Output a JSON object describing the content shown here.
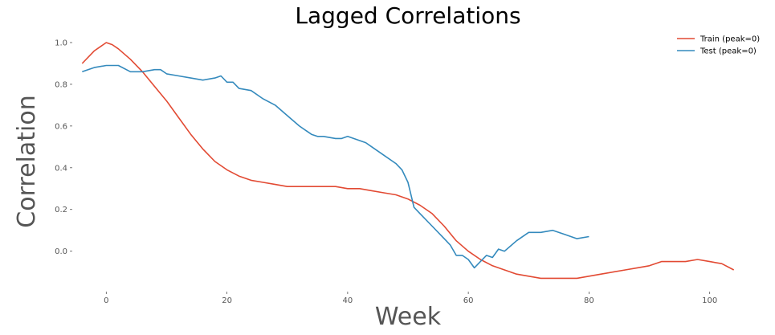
{
  "chart_data": {
    "type": "line",
    "title": "Lagged Correlations",
    "xlabel": "Week",
    "ylabel": "Correlation",
    "xlim": [
      -5.5,
      105.5
    ],
    "ylim": [
      -0.19,
      1.05
    ],
    "xticks": [
      0,
      20,
      40,
      60,
      80,
      100
    ],
    "yticks": [
      0.0,
      0.2,
      0.4,
      0.6,
      0.8,
      1.0
    ],
    "grid": false,
    "legend_position": "top-right",
    "series": [
      {
        "name": "Train (peak=0)",
        "color": "#e24a33",
        "x": [
          -4,
          -2,
          -1,
          0,
          1,
          2,
          4,
          6,
          8,
          10,
          12,
          14,
          16,
          18,
          20,
          22,
          24,
          26,
          28,
          30,
          32,
          34,
          36,
          38,
          40,
          42,
          44,
          46,
          48,
          50,
          52,
          54,
          56,
          58,
          60,
          62,
          64,
          66,
          68,
          70,
          72,
          74,
          76,
          78,
          80,
          82,
          84,
          86,
          88,
          90,
          92,
          94,
          96,
          98,
          100,
          102,
          104
        ],
        "y": [
          0.9,
          0.96,
          0.98,
          1.0,
          0.99,
          0.97,
          0.92,
          0.86,
          0.79,
          0.72,
          0.64,
          0.56,
          0.49,
          0.43,
          0.39,
          0.36,
          0.34,
          0.33,
          0.32,
          0.31,
          0.31,
          0.31,
          0.31,
          0.31,
          0.3,
          0.3,
          0.29,
          0.28,
          0.27,
          0.25,
          0.22,
          0.18,
          0.12,
          0.05,
          0.0,
          -0.04,
          -0.07,
          -0.09,
          -0.11,
          -0.12,
          -0.13,
          -0.13,
          -0.13,
          -0.13,
          -0.12,
          -0.11,
          -0.1,
          -0.09,
          -0.08,
          -0.07,
          -0.05,
          -0.05,
          -0.05,
          -0.04,
          -0.05,
          -0.06,
          -0.09
        ]
      },
      {
        "name": "Test (peak=0)",
        "color": "#348abd",
        "x": [
          -4,
          -2,
          0,
          2,
          4,
          6,
          8,
          9,
          10,
          12,
          14,
          16,
          18,
          19,
          20,
          21,
          22,
          24,
          26,
          28,
          30,
          32,
          34,
          35,
          36,
          38,
          39,
          40,
          41,
          42,
          43,
          44,
          46,
          48,
          49,
          50,
          51,
          52,
          54,
          56,
          57,
          58,
          59,
          60,
          61,
          62,
          63,
          64,
          65,
          66,
          68,
          70,
          72,
          74,
          76,
          78,
          80
        ],
        "y": [
          0.86,
          0.88,
          0.89,
          0.89,
          0.86,
          0.86,
          0.87,
          0.87,
          0.85,
          0.84,
          0.83,
          0.82,
          0.83,
          0.84,
          0.81,
          0.81,
          0.78,
          0.77,
          0.73,
          0.7,
          0.65,
          0.6,
          0.56,
          0.55,
          0.55,
          0.54,
          0.54,
          0.55,
          0.54,
          0.53,
          0.52,
          0.5,
          0.46,
          0.42,
          0.39,
          0.33,
          0.21,
          0.18,
          0.12,
          0.06,
          0.03,
          -0.02,
          -0.02,
          -0.04,
          -0.08,
          -0.05,
          -0.02,
          -0.03,
          0.01,
          0.0,
          0.05,
          0.09,
          0.09,
          0.1,
          0.08,
          0.06,
          0.07
        ]
      }
    ]
  }
}
